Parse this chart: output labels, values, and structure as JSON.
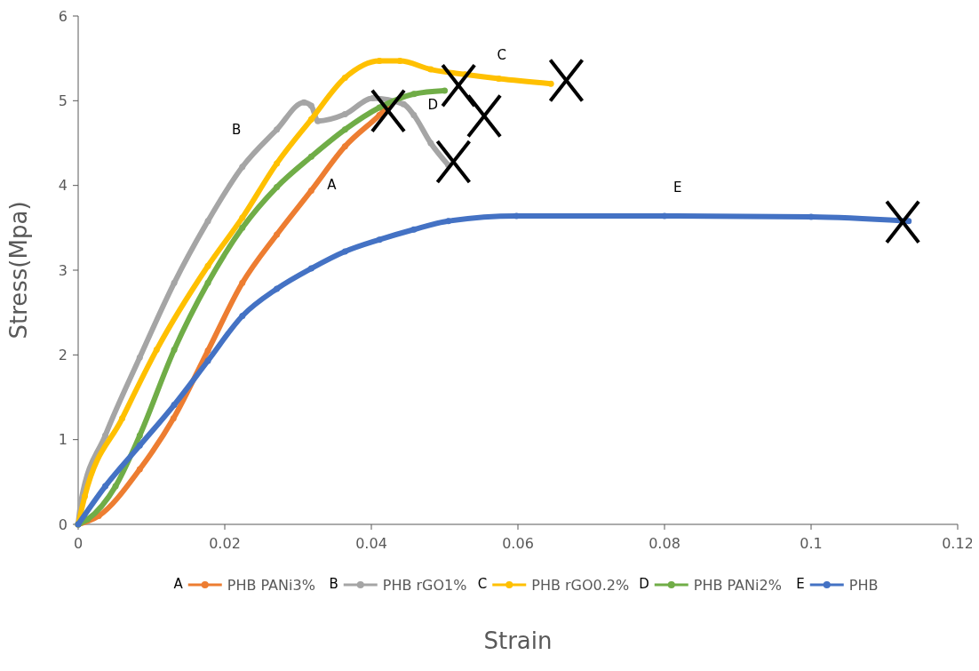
{
  "chart_data": {
    "type": "line",
    "xlabel": "Strain",
    "ylabel": "Stress(Mpa)",
    "xlim": [
      0,
      0.12
    ],
    "ylim": [
      0,
      6
    ],
    "xticks": [
      0,
      0.02,
      0.04,
      0.06,
      0.08,
      0.1,
      0.12
    ],
    "yticks": [
      0,
      1,
      2,
      3,
      4,
      5,
      6
    ],
    "grid": false,
    "legend": "bottom",
    "marker": "circle",
    "line_style": "solid",
    "series": [
      {
        "name": "PHB PANi3%",
        "color": "#ed7d31",
        "x": [
          0,
          0.0028,
          0.0084,
          0.013,
          0.0177,
          0.0224,
          0.0271,
          0.0318,
          0.0364,
          0.0411,
          0.0425
        ],
        "values": [
          0,
          0.1,
          0.65,
          1.25,
          2.05,
          2.85,
          3.42,
          3.94,
          4.46,
          4.83,
          4.95
        ]
      },
      {
        "name": "PHB rGO1%",
        "color": "#a5a5a5",
        "x": [
          0,
          0.0004,
          0.0037,
          0.0084,
          0.0131,
          0.0177,
          0.0224,
          0.0271,
          0.0308,
          0.0318,
          0.0327,
          0.0364,
          0.0402,
          0.0444,
          0.0458,
          0.0481,
          0.0505
        ],
        "values": [
          0,
          0.28,
          1.05,
          1.97,
          2.85,
          3.58,
          4.22,
          4.66,
          4.98,
          4.94,
          4.76,
          4.84,
          5.03,
          4.96,
          4.83,
          4.5,
          4.24
        ]
      },
      {
        "name": "PHB rGO0.2%",
        "color": "#ffc000",
        "x": [
          0,
          0.0009,
          0.006,
          0.0107,
          0.0177,
          0.0224,
          0.0271,
          0.0318,
          0.0364,
          0.0411,
          0.0439,
          0.0481,
          0.0528,
          0.0574,
          0.0645
        ],
        "values": [
          0,
          0.33,
          1.25,
          2.06,
          3.05,
          3.62,
          4.26,
          4.78,
          5.27,
          5.47,
          5.47,
          5.37,
          5.31,
          5.26,
          5.2
        ]
      },
      {
        "name": "PHB PANi2%",
        "color": "#70ad47",
        "x": [
          0,
          0.0013,
          0.0051,
          0.0084,
          0.0131,
          0.0177,
          0.0224,
          0.0271,
          0.0318,
          0.0364,
          0.0411,
          0.0458,
          0.05
        ],
        "values": [
          0,
          0.06,
          0.45,
          1.05,
          2.06,
          2.85,
          3.5,
          3.98,
          4.34,
          4.66,
          4.92,
          5.08,
          5.12
        ]
      },
      {
        "name": "PHB",
        "color": "#4472c4",
        "x": [
          0,
          0.0037,
          0.0084,
          0.0131,
          0.0177,
          0.0224,
          0.0271,
          0.0318,
          0.0364,
          0.0411,
          0.0458,
          0.0505,
          0.0598,
          0.08,
          0.1,
          0.1133
        ],
        "values": [
          0,
          0.45,
          0.93,
          1.41,
          1.93,
          2.46,
          2.78,
          3.02,
          3.22,
          3.36,
          3.48,
          3.58,
          3.64,
          3.64,
          3.63,
          3.58
        ]
      }
    ],
    "annotations": [
      "A",
      "B",
      "C",
      "D",
      "E"
    ]
  }
}
